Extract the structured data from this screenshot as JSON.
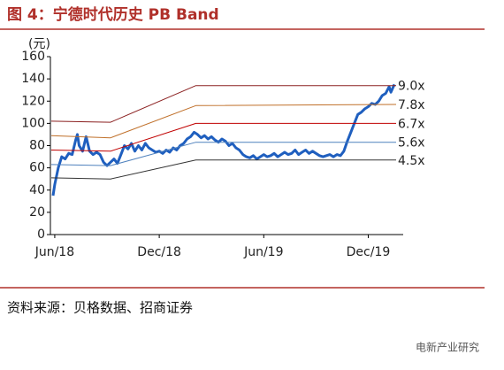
{
  "chart_data": {
    "type": "line",
    "title": "图 4：宁德时代历史 PB Band",
    "y_label": "(元)",
    "source": "资料来源：贝格数据、招商证券",
    "watermark": "电新产业研究",
    "xlim": [
      -0.25,
      19.6
    ],
    "xticks": [
      {
        "value": 0,
        "label": "Jun/18"
      },
      {
        "value": 6,
        "label": "Dec/18"
      },
      {
        "value": 12,
        "label": "Jun/19"
      },
      {
        "value": 18,
        "label": "Dec/19"
      }
    ],
    "ylim": [
      0,
      160
    ],
    "yticks": [
      0,
      20,
      40,
      60,
      80,
      100,
      120,
      140,
      160
    ],
    "series": [
      {
        "name": "price",
        "color": "#1f5fbf",
        "width": 3,
        "x": [
          -0.1,
          0,
          0.2,
          0.4,
          0.6,
          0.8,
          1.0,
          1.2,
          1.3,
          1.4,
          1.6,
          1.8,
          2.0,
          2.2,
          2.4,
          2.6,
          2.8,
          3.0,
          3.2,
          3.4,
          3.6,
          3.8,
          4.0,
          4.2,
          4.4,
          4.6,
          4.8,
          5.0,
          5.2,
          5.4,
          5.6,
          5.8,
          6.0,
          6.2,
          6.4,
          6.6,
          6.8,
          7.0,
          7.2,
          7.4,
          7.6,
          7.8,
          8.0,
          8.2,
          8.4,
          8.6,
          8.8,
          9.0,
          9.2,
          9.4,
          9.6,
          9.8,
          10.0,
          10.2,
          10.4,
          10.6,
          10.8,
          11.0,
          11.2,
          11.4,
          11.6,
          11.8,
          12.0,
          12.2,
          12.4,
          12.6,
          12.8,
          13.0,
          13.2,
          13.4,
          13.6,
          13.8,
          14.0,
          14.2,
          14.4,
          14.6,
          14.8,
          15.0,
          15.2,
          15.4,
          15.6,
          15.8,
          16.0,
          16.2,
          16.4,
          16.6,
          16.8,
          17.0,
          17.2,
          17.4,
          17.6,
          17.8,
          18.0,
          18.2,
          18.4,
          18.6,
          18.8,
          19.0,
          19.2,
          19.3,
          19.5
        ],
        "values": [
          35,
          45,
          60,
          70,
          68,
          73,
          72,
          85,
          90,
          80,
          75,
          88,
          75,
          72,
          74,
          72,
          65,
          62,
          65,
          68,
          64,
          72,
          80,
          77,
          82,
          75,
          80,
          76,
          82,
          78,
          76,
          74,
          75,
          73,
          76,
          74,
          78,
          76,
          80,
          82,
          86,
          88,
          92,
          90,
          87,
          89,
          86,
          88,
          85,
          83,
          86,
          84,
          80,
          82,
          78,
          76,
          72,
          70,
          69,
          71,
          68,
          70,
          72,
          70,
          71,
          73,
          70,
          72,
          74,
          72,
          73,
          76,
          72,
          74,
          76,
          73,
          75,
          73,
          71,
          70,
          71,
          72,
          70,
          72,
          71,
          75,
          84,
          92,
          100,
          108,
          110,
          113,
          115,
          118,
          117,
          120,
          125,
          127,
          133,
          128,
          135
        ]
      },
      {
        "name": "9.0x",
        "color": "#8b2020",
        "width": 1,
        "x": [
          -0.2,
          3.2,
          8.1,
          19.6
        ],
        "values": [
          102,
          101,
          134,
          134
        ]
      },
      {
        "name": "7.8x",
        "color": "#c0702a",
        "width": 1,
        "x": [
          -0.2,
          3.2,
          8.1,
          19.6
        ],
        "values": [
          89,
          87,
          116,
          117
        ]
      },
      {
        "name": "6.7x",
        "color": "#c00000",
        "width": 1,
        "x": [
          -0.2,
          3.2,
          8.1,
          19.6
        ],
        "values": [
          76,
          75,
          100,
          100
        ]
      },
      {
        "name": "5.6x",
        "color": "#4f81bd",
        "width": 1,
        "x": [
          -0.2,
          3.2,
          8.1,
          19.6
        ],
        "values": [
          63,
          62,
          83,
          83
        ]
      },
      {
        "name": "4.5x",
        "color": "#333333",
        "width": 1,
        "x": [
          -0.2,
          3.2,
          8.1,
          19.6
        ],
        "values": [
          51,
          50,
          67,
          67
        ]
      }
    ]
  }
}
